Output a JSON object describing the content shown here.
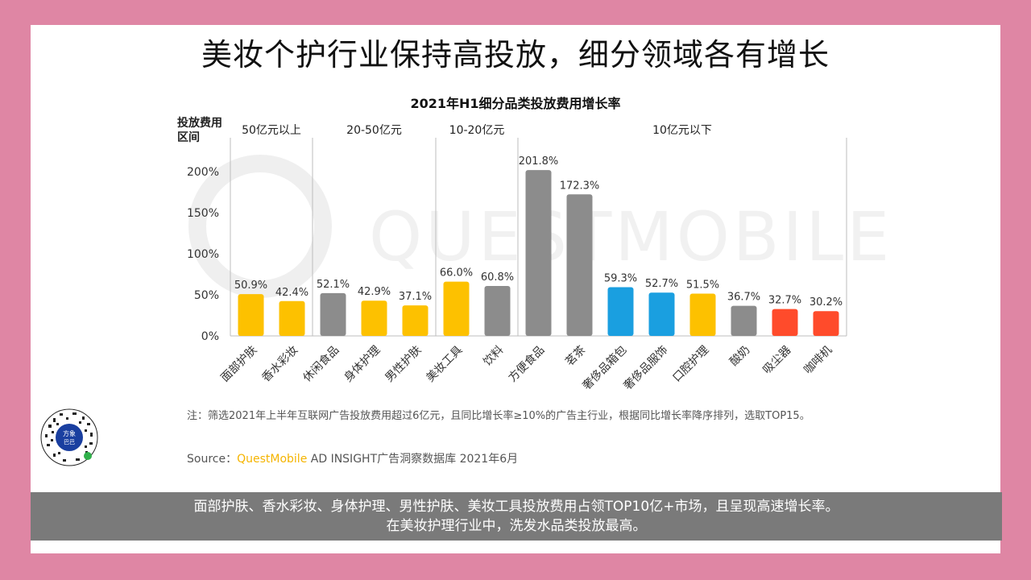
{
  "page": {
    "title": "美妆个护行业保持高投放，细分领域各有增长",
    "watermark": "QUESTMOBILE",
    "note": "注：筛选2021年上半年互联网广告投放费用超过6亿元，且同比增长率≥10%的广告主行业，根据同比增长率降序排列，选取TOP15。",
    "source_prefix": "Source：",
    "source_brand": "QuestMobile",
    "source_rest": " AD INSIGHT广告洞察数据库 2021年6月",
    "caption_line1": "面部护肤、香水彩妆、身体护理、男性护肤、美妆工具投放费用占领TOP10亿+市场，且呈现高速增长率。",
    "caption_line2": "在美妆护理行业中，洗发水品类投放最高。",
    "qr_label_1": "方象",
    "qr_label_2": "巴巴"
  },
  "chart_data": {
    "type": "bar",
    "title": "2021年H1细分品类投放费用增长率",
    "ylabel": "投放费用区间",
    "ylabel_line1": "投放费用",
    "ylabel_line2": "区间",
    "ylim": [
      0,
      200
    ],
    "yticks": [
      "0%",
      "50%",
      "100%",
      "150%",
      "200%"
    ],
    "ytick_values": [
      0,
      50,
      100,
      150,
      200
    ],
    "categories": [
      "面部护肤",
      "香水彩妆",
      "休闲食品",
      "身体护理",
      "男性护肤",
      "美妆工具",
      "饮料",
      "方便食品",
      "茗茶",
      "奢侈品箱包",
      "奢侈品服饰",
      "口腔护理",
      "酸奶",
      "吸尘器",
      "咖啡机"
    ],
    "values": [
      50.9,
      42.4,
      52.1,
      42.9,
      37.1,
      66.0,
      60.8,
      201.8,
      172.3,
      59.3,
      52.7,
      51.5,
      36.7,
      32.7,
      30.2
    ],
    "value_labels": [
      "50.9%",
      "42.4%",
      "52.1%",
      "42.9%",
      "37.1%",
      "66.0%",
      "60.8%",
      "201.8%",
      "172.3%",
      "59.3%",
      "52.7%",
      "51.5%",
      "36.7%",
      "32.7%",
      "30.2%"
    ],
    "bar_colors": [
      "#fdc100",
      "#fdc100",
      "#8c8c8c",
      "#fdc100",
      "#fdc100",
      "#fdc100",
      "#8c8c8c",
      "#8c8c8c",
      "#8c8c8c",
      "#1a9fe0",
      "#1a9fe0",
      "#fdc100",
      "#8c8c8c",
      "#ff4b2b",
      "#ff4b2b"
    ],
    "groups": [
      {
        "label": "50亿元以上",
        "start": 0,
        "end": 1
      },
      {
        "label": "20-50亿元",
        "start": 2,
        "end": 4
      },
      {
        "label": "10-20亿元",
        "start": 5,
        "end": 6
      },
      {
        "label": "10亿元以下",
        "start": 7,
        "end": 14
      }
    ],
    "grid": false,
    "legend": "none"
  }
}
